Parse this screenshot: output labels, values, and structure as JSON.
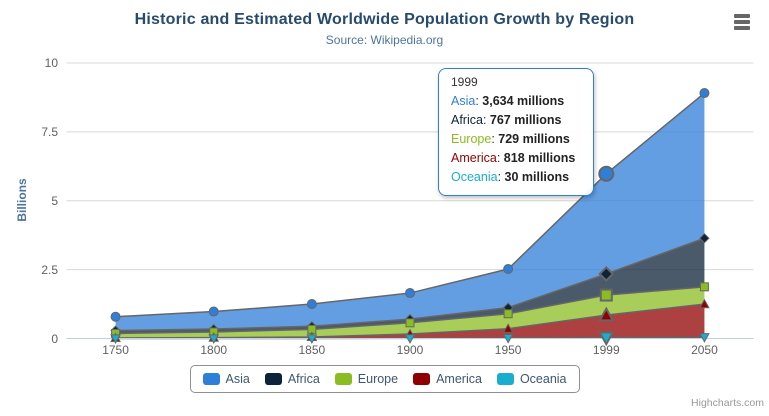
{
  "chart": {
    "title": "Historic and Estimated Worldwide Population Growth by Region",
    "subtitle": "Source: Wikipedia.org",
    "credits": "Highcharts.com"
  },
  "chart_data": {
    "type": "area",
    "stacking": "normal",
    "title": "Historic and Estimated Worldwide Population Growth by Region",
    "subtitle": "Source: Wikipedia.org",
    "categories": [
      "1750",
      "1800",
      "1850",
      "1900",
      "1950",
      "1999",
      "2050"
    ],
    "xlabel": "",
    "ylabel": "Billions",
    "ylim": [
      0,
      10
    ],
    "yticks": [
      0,
      2.5,
      5,
      7.5,
      10
    ],
    "ytick_labels": [
      "0",
      "2.5",
      "5",
      "7.5",
      "10"
    ],
    "values_unit": "millions",
    "grid": true,
    "legend_position": "bottom",
    "line_color": "#666666",
    "fill_opacity": 0.75,
    "grid_color": "#d8d8d8",
    "axis_line_color": "#c0d0e0",
    "series": [
      {
        "name": "Asia",
        "color": "#2f7ed8",
        "symbol": "circle",
        "values": [
          502,
          635,
          809,
          947,
          1402,
          3634,
          5268
        ]
      },
      {
        "name": "Africa",
        "color": "#0d233a",
        "symbol": "diamond",
        "values": [
          106,
          107,
          111,
          133,
          221,
          767,
          1766
        ]
      },
      {
        "name": "Europe",
        "color": "#8bbc21",
        "symbol": "square",
        "values": [
          163,
          203,
          276,
          408,
          547,
          729,
          628
        ]
      },
      {
        "name": "America",
        "color": "#910000",
        "symbol": "triangle",
        "values": [
          18,
          31,
          54,
          156,
          339,
          818,
          1201
        ]
      },
      {
        "name": "Oceania",
        "color": "#1aadce",
        "symbol": "triangle-down",
        "values": [
          2,
          2,
          2,
          6,
          13,
          30,
          46
        ]
      }
    ]
  },
  "tooltip": {
    "visible": true,
    "category": "1999",
    "category_index": 5,
    "rows": [
      {
        "series": "Asia",
        "value": "3,634 millions"
      },
      {
        "series": "Africa",
        "value": "767 millions"
      },
      {
        "series": "Europe",
        "value": "729 millions"
      },
      {
        "series": "America",
        "value": "818 millions"
      },
      {
        "series": "Oceania",
        "value": "30 millions"
      }
    ]
  }
}
